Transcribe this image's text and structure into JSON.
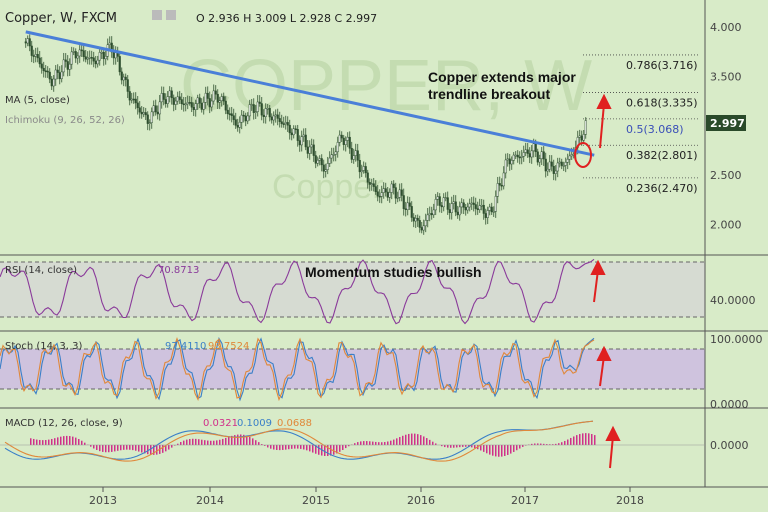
{
  "header": {
    "symbol": "Copper, W, FXCM",
    "ohlc": "O 2.936  H 3.009  L 2.928  C 2.997",
    "indicator_ma": "MA (5, close)",
    "indicator_ichimoku": "Ichimoku (9, 26, 52, 26)"
  },
  "watermark": {
    "big": "COPPER, W",
    "small": "Copper"
  },
  "price_tag": "2.997",
  "annotations": {
    "headline_1": "Copper extends major",
    "headline_2": "trendline breakout",
    "momentum": "Momentum studies bullish"
  },
  "fib_levels": [
    {
      "label": "0.786(3.716)",
      "value": 3.716
    },
    {
      "label": "0.618(3.335)",
      "value": 3.335
    },
    {
      "label": "0.5(3.068)",
      "value": 3.068
    },
    {
      "label": "0.382(2.801)",
      "value": 2.801
    },
    {
      "label": "0.236(2.470)",
      "value": 2.47
    }
  ],
  "panels": {
    "rsi": {
      "title": "RSI (14, close)",
      "value": "70.8713",
      "axis_label": "40.0000"
    },
    "stoch": {
      "title": "Stoch (14, 3, 3)",
      "k": "97.4110",
      "d": "93.7524",
      "axis_top": "100.0000",
      "axis_bottom": "0.0000"
    },
    "macd": {
      "title": "MACD (12, 26, close, 9)",
      "hist": "0.0321",
      "macd": "0.1009",
      "signal": "0.0688",
      "axis_label": "0.0000"
    }
  },
  "colors": {
    "background": "#d8ebc8",
    "trendline": "#4a7fd8",
    "candle": "#2f4f2f",
    "rsi": "#8a3a9a",
    "stoch_k": "#3a7fc8",
    "stoch_d": "#e0883a",
    "macd": "#3a7fc8",
    "signal": "#e0883a",
    "hist": "#d0308a",
    "arrow": "#e02020",
    "price_tag": "#2a4a2a"
  },
  "chart_data": {
    "type": "line",
    "title": "Copper, W, FXCM",
    "x_ticks": [
      "2013",
      "2014",
      "2015",
      "2016",
      "2017",
      "2018"
    ],
    "y_ticks": [
      "4.000",
      "3.500",
      "3.000",
      "2.500",
      "2.000"
    ],
    "ylim": [
      1.8,
      4.05
    ],
    "series": [
      {
        "name": "Copper",
        "x": [
          "2012-04",
          "2012-07",
          "2012-10",
          "2012-12",
          "2013-02",
          "2013-04",
          "2013-06",
          "2013-08",
          "2013-11",
          "2014-02",
          "2014-04",
          "2014-06",
          "2014-09",
          "2014-12",
          "2015-02",
          "2015-04",
          "2015-06",
          "2015-08",
          "2015-10",
          "2015-12",
          "2016-01",
          "2016-03",
          "2016-05",
          "2016-07",
          "2016-09",
          "2016-11",
          "2017-02",
          "2017-04",
          "2017-06",
          "2017-08"
        ],
        "values": [
          3.85,
          3.45,
          3.75,
          3.65,
          3.8,
          3.3,
          3.05,
          3.3,
          3.2,
          3.3,
          3.0,
          3.2,
          3.05,
          2.8,
          2.55,
          2.9,
          2.6,
          2.3,
          2.35,
          2.1,
          1.95,
          2.25,
          2.15,
          2.2,
          2.1,
          2.65,
          2.75,
          2.55,
          2.65,
          3.0
        ]
      }
    ],
    "trendline": {
      "x": [
        "2012-04",
        "2017-08"
      ],
      "values": [
        3.95,
        2.7
      ]
    },
    "fib_retracement": [
      3.716,
      3.335,
      3.068,
      2.801,
      2.47
    ],
    "last_price": 2.997,
    "rsi_last": 70.8713,
    "stoch_k_last": 97.411,
    "stoch_d_last": 93.7524,
    "macd_hist_last": 0.0321,
    "macd_last": 0.1009,
    "signal_last": 0.0688
  }
}
